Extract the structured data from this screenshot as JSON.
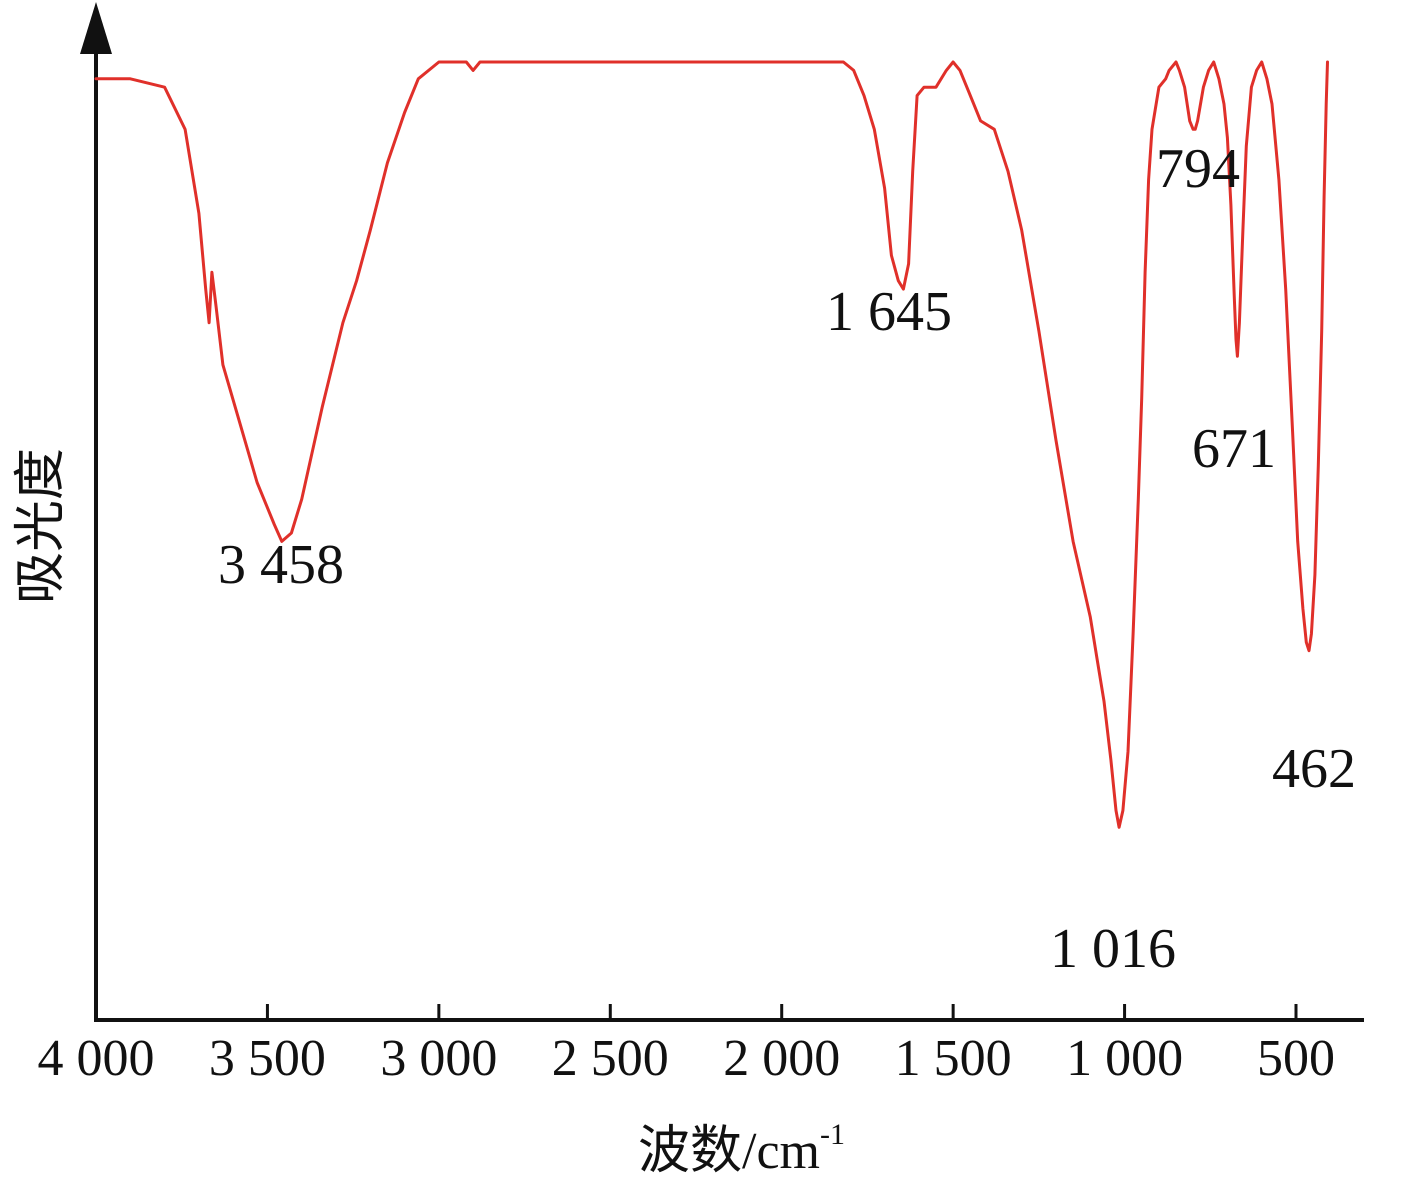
{
  "chart_data": {
    "type": "line",
    "title": "",
    "xlabel_main": "波数/cm",
    "xlabel_sup": "-1",
    "ylabel": "吸光度",
    "xlim": [
      4000,
      380
    ],
    "x_reversed": true,
    "y_scale": "relative absorbance (arbitrary, no ticks)",
    "ylim": [
      0,
      1
    ],
    "grid": false,
    "legend": "none",
    "line_color": "#e0302a",
    "axis_color": "#111111",
    "x_ticks": [
      {
        "value": 4000,
        "label": "4 000"
      },
      {
        "value": 3500,
        "label": "3 500"
      },
      {
        "value": 3000,
        "label": "3 000"
      },
      {
        "value": 2500,
        "label": "2 500"
      },
      {
        "value": 2000,
        "label": "2 000"
      },
      {
        "value": 1500,
        "label": "1 500"
      },
      {
        "value": 1000,
        "label": "1 000"
      },
      {
        "value": 500,
        "label": "500"
      }
    ],
    "peaks": [
      {
        "x": 3458,
        "label": "3 458"
      },
      {
        "x": 1645,
        "label": "1 645"
      },
      {
        "x": 1016,
        "label": "1 016"
      },
      {
        "x": 794,
        "label": "794"
      },
      {
        "x": 671,
        "label": "671"
      },
      {
        "x": 462,
        "label": "462"
      }
    ],
    "series": [
      {
        "points": [
          [
            4000,
            0.02
          ],
          [
            3900,
            0.02
          ],
          [
            3800,
            0.03
          ],
          [
            3740,
            0.08
          ],
          [
            3700,
            0.18
          ],
          [
            3680,
            0.27
          ],
          [
            3670,
            0.31
          ],
          [
            3662,
            0.25
          ],
          [
            3650,
            0.29
          ],
          [
            3630,
            0.36
          ],
          [
            3580,
            0.43
          ],
          [
            3530,
            0.5
          ],
          [
            3480,
            0.55
          ],
          [
            3458,
            0.57
          ],
          [
            3430,
            0.56
          ],
          [
            3400,
            0.52
          ],
          [
            3340,
            0.41
          ],
          [
            3280,
            0.31
          ],
          [
            3240,
            0.26
          ],
          [
            3200,
            0.2
          ],
          [
            3150,
            0.12
          ],
          [
            3100,
            0.06
          ],
          [
            3060,
            0.02
          ],
          [
            3000,
            0.0
          ],
          [
            2920,
            0.0
          ],
          [
            2900,
            0.01
          ],
          [
            2880,
            0.0
          ],
          [
            2800,
            0.0
          ],
          [
            2500,
            0.0
          ],
          [
            2000,
            0.0
          ],
          [
            1900,
            0.0
          ],
          [
            1820,
            0.0
          ],
          [
            1790,
            0.01
          ],
          [
            1760,
            0.04
          ],
          [
            1730,
            0.08
          ],
          [
            1700,
            0.15
          ],
          [
            1680,
            0.23
          ],
          [
            1660,
            0.26
          ],
          [
            1645,
            0.27
          ],
          [
            1630,
            0.24
          ],
          [
            1618,
            0.13
          ],
          [
            1605,
            0.04
          ],
          [
            1585,
            0.03
          ],
          [
            1550,
            0.03
          ],
          [
            1520,
            0.01
          ],
          [
            1500,
            0.0
          ],
          [
            1480,
            0.01
          ],
          [
            1450,
            0.04
          ],
          [
            1420,
            0.07
          ],
          [
            1380,
            0.08
          ],
          [
            1340,
            0.13
          ],
          [
            1300,
            0.2
          ],
          [
            1250,
            0.32
          ],
          [
            1200,
            0.45
          ],
          [
            1150,
            0.57
          ],
          [
            1100,
            0.66
          ],
          [
            1080,
            0.71
          ],
          [
            1060,
            0.76
          ],
          [
            1040,
            0.83
          ],
          [
            1025,
            0.89
          ],
          [
            1016,
            0.91
          ],
          [
            1005,
            0.89
          ],
          [
            990,
            0.82
          ],
          [
            975,
            0.68
          ],
          [
            960,
            0.52
          ],
          [
            950,
            0.4
          ],
          [
            940,
            0.25
          ],
          [
            930,
            0.14
          ],
          [
            920,
            0.08
          ],
          [
            900,
            0.03
          ],
          [
            880,
            0.02
          ],
          [
            870,
            0.01
          ],
          [
            850,
            0.0
          ],
          [
            840,
            0.01
          ],
          [
            825,
            0.03
          ],
          [
            810,
            0.07
          ],
          [
            800,
            0.08
          ],
          [
            794,
            0.08
          ],
          [
            787,
            0.07
          ],
          [
            770,
            0.03
          ],
          [
            755,
            0.01
          ],
          [
            740,
            0.0
          ],
          [
            725,
            0.02
          ],
          [
            710,
            0.05
          ],
          [
            700,
            0.09
          ],
          [
            690,
            0.17
          ],
          [
            680,
            0.28
          ],
          [
            675,
            0.33
          ],
          [
            671,
            0.35
          ],
          [
            665,
            0.31
          ],
          [
            655,
            0.2
          ],
          [
            645,
            0.1
          ],
          [
            630,
            0.03
          ],
          [
            615,
            0.01
          ],
          [
            600,
            0.0
          ],
          [
            585,
            0.02
          ],
          [
            570,
            0.05
          ],
          [
            550,
            0.14
          ],
          [
            530,
            0.27
          ],
          [
            510,
            0.44
          ],
          [
            495,
            0.57
          ],
          [
            480,
            0.65
          ],
          [
            470,
            0.69
          ],
          [
            462,
            0.7
          ],
          [
            455,
            0.68
          ],
          [
            445,
            0.61
          ],
          [
            435,
            0.48
          ],
          [
            425,
            0.32
          ],
          [
            418,
            0.16
          ],
          [
            412,
            0.05
          ],
          [
            408,
            0.0
          ]
        ]
      }
    ]
  }
}
